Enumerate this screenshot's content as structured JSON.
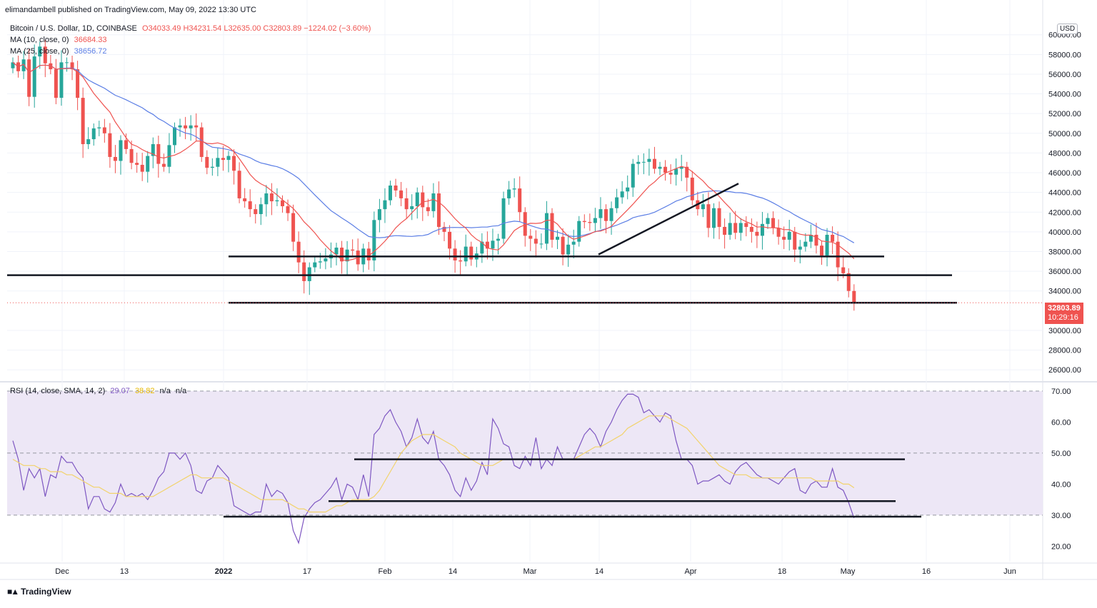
{
  "header": {
    "published": "elimandambell published on TradingView.com, May 09, 2022 13:30 UTC"
  },
  "price_pane": {
    "symbol_line": "Bitcoin / U.S. Dollar, 1D, COINBASE",
    "ohlc": "O34033.49 H34231.54 L32635.00 C32803.89 −1224.02 (−3.60%)",
    "ma1_label": "MA (10, close, 0)",
    "ma1_value": "36684.33",
    "ma2_label": "MA (25, close, 0)",
    "ma2_value": "38656.72",
    "currency_button": "USD",
    "last_price": "32803.89",
    "countdown": "10:29:16"
  },
  "rsi_pane": {
    "label": "RSI (14, close, SMA, 14, 2)",
    "rsi_value": "29.07",
    "sma_value": "38.82",
    "na1": "n/a",
    "na2": "n/a"
  },
  "footer": {
    "logo_text": "TradingView"
  },
  "colors": {
    "up": "#26a69a",
    "down": "#ef5350",
    "ma10": "#ef5350",
    "ma25": "#5b7ee5",
    "rsi": "#7e57c2",
    "rsi_sma": "#f2d36b",
    "band": "#ede7f6",
    "level": "#131722"
  },
  "chart_data": [
    {
      "type": "candlestick",
      "title": "Bitcoin / U.S. Dollar, 1D, COINBASE",
      "x_tick_labels": [
        "Dec",
        "13",
        "2022",
        "17",
        "Feb",
        "14",
        "Mar",
        "14",
        "Apr",
        "18",
        "May",
        "16",
        "Jun"
      ],
      "y_tick_labels": [
        "26000.00",
        "28000.00",
        "30000.00",
        "34000.00",
        "36000.00",
        "38000.00",
        "40000.00",
        "42000.00",
        "44000.00",
        "46000.00",
        "48000.00",
        "50000.00",
        "52000.00",
        "54000.00",
        "56000.00",
        "58000.00",
        "60000.00"
      ],
      "ylim": [
        25000,
        61500
      ],
      "series_close_daily": [
        57200,
        56300,
        57500,
        53700,
        57800,
        58800,
        57100,
        56500,
        53600,
        57200,
        57200,
        56500,
        53600,
        48900,
        49400,
        50500,
        50600,
        50000,
        47600,
        47200,
        49300,
        48400,
        47000,
        46800,
        46100,
        47700,
        48900,
        46900,
        46600,
        48800,
        50600,
        50800,
        50500,
        50800,
        50600,
        47600,
        46500,
        46600,
        47500,
        47300,
        47700,
        46200,
        43400,
        43100,
        42300,
        41800,
        42800,
        43900,
        43100,
        43200,
        42600,
        41900,
        39000,
        36900,
        35000,
        36400,
        36900,
        37000,
        37300,
        37700,
        38400,
        37000,
        38200,
        38100,
        36700,
        38300,
        37100,
        41200,
        42300,
        43200,
        44700,
        44200,
        43400,
        42300,
        42600,
        44000,
        42500,
        42100,
        43900,
        40500,
        40000,
        38300,
        37100,
        37000,
        38500,
        37200,
        37800,
        39000,
        38300,
        39100,
        39300,
        43400,
        44300,
        44400,
        42000,
        39600,
        39300,
        38800,
        38800,
        41900,
        39200,
        39500,
        37700,
        38700,
        39000,
        41100,
        41000,
        40900,
        41400,
        42300,
        41100,
        42400,
        43500,
        44100,
        44500,
        46900,
        47100,
        47100,
        47400,
        46400,
        46600,
        46000,
        45800,
        46400,
        46600,
        45500,
        43200,
        42300,
        42800,
        40400,
        42400,
        40500,
        39700,
        40900,
        39900,
        40900,
        40500,
        40000,
        39600,
        40800,
        41400,
        40400,
        39500,
        39200,
        40000,
        38200,
        38500,
        39000,
        39700,
        38600,
        37600,
        39700,
        39000,
        36400,
        35800,
        34000,
        32800
      ],
      "ma10_label": "MA (10, close, 0)",
      "ma25_label": "MA (25, close, 0)",
      "last_value": 32803.89,
      "levels": [
        {
          "price": 37500
        },
        {
          "price": 35600
        },
        {
          "price": 32800
        }
      ],
      "trendlines": [
        {
          "from_price": 37700,
          "to_price": 44900
        }
      ]
    },
    {
      "type": "line",
      "title": "RSI (14, close, SMA, 14, 2)",
      "y_tick_labels": [
        "20.00",
        "30.00",
        "40.00",
        "50.00",
        "60.00",
        "70.00"
      ],
      "ylim": [
        15,
        73
      ],
      "band": [
        30,
        70
      ],
      "series": [
        {
          "name": "RSI",
          "values": [
            54,
            48,
            38,
            45,
            42,
            45,
            36,
            43,
            42,
            49,
            47,
            47,
            44,
            42,
            32,
            36,
            36,
            32,
            31,
            34,
            40,
            36,
            37,
            36,
            37,
            35,
            38,
            42,
            44,
            50,
            50,
            48,
            50,
            46,
            38,
            37,
            41,
            42,
            46,
            44,
            42,
            33,
            32,
            31,
            30,
            31,
            31,
            40,
            36,
            38,
            37,
            34,
            25,
            21,
            29,
            32,
            34,
            35,
            37,
            39,
            42,
            35,
            40,
            39,
            35,
            43,
            36,
            56,
            58,
            62,
            64,
            60,
            57,
            52,
            55,
            61,
            55,
            53,
            57,
            48,
            46,
            43,
            38,
            36,
            42,
            38,
            41,
            47,
            43,
            61,
            58,
            53,
            52,
            46,
            45,
            49,
            46,
            55,
            45,
            48,
            46,
            52,
            48,
            48,
            48,
            52,
            56,
            58,
            56,
            52,
            57,
            60,
            64,
            67,
            69,
            69,
            68,
            63,
            64,
            62,
            60,
            63,
            62,
            54,
            48,
            48,
            46,
            40,
            41,
            41,
            42,
            43,
            41,
            40,
            44,
            46,
            47,
            45,
            43,
            42,
            42,
            41,
            40,
            42,
            44,
            45,
            38,
            37,
            40,
            41,
            39,
            39,
            45,
            39,
            38,
            34,
            29.07
          ]
        },
        {
          "name": "SMA",
          "values": [
            48,
            47,
            46,
            46,
            46,
            45,
            45,
            44,
            44,
            44,
            43,
            43,
            42,
            41,
            40,
            39,
            39,
            38,
            37,
            37,
            37,
            36,
            36,
            36,
            36,
            36,
            36,
            37,
            38,
            39,
            40,
            41,
            42,
            43,
            43,
            42,
            42,
            42,
            42,
            42,
            41,
            40,
            39,
            38,
            37,
            36,
            35,
            35,
            35,
            35,
            35,
            34,
            33,
            32,
            32,
            31,
            31,
            31,
            31,
            32,
            33,
            33,
            34,
            35,
            35,
            35,
            35,
            36,
            38,
            41,
            44,
            47,
            50,
            52,
            54,
            55,
            56,
            56,
            56,
            55,
            54,
            53,
            52,
            50,
            49,
            48,
            47,
            46,
            46,
            46,
            47,
            48,
            48,
            48,
            48,
            48,
            48,
            48,
            48,
            48,
            48,
            48,
            48,
            48,
            48,
            49,
            50,
            51,
            52,
            52,
            53,
            54,
            55,
            56,
            58,
            59,
            60,
            61,
            62,
            62,
            62,
            62,
            61,
            60,
            59,
            58,
            56,
            54,
            52,
            50,
            48,
            46,
            45,
            44,
            43,
            43,
            43,
            42,
            42,
            42,
            42,
            42,
            42,
            42,
            42,
            42,
            42,
            42,
            42,
            41,
            41,
            41,
            41,
            41,
            40,
            40,
            38.82
          ]
        }
      ],
      "levels": [
        {
          "value": 48
        },
        {
          "value": 34.5
        },
        {
          "value": 29.5
        }
      ]
    }
  ]
}
